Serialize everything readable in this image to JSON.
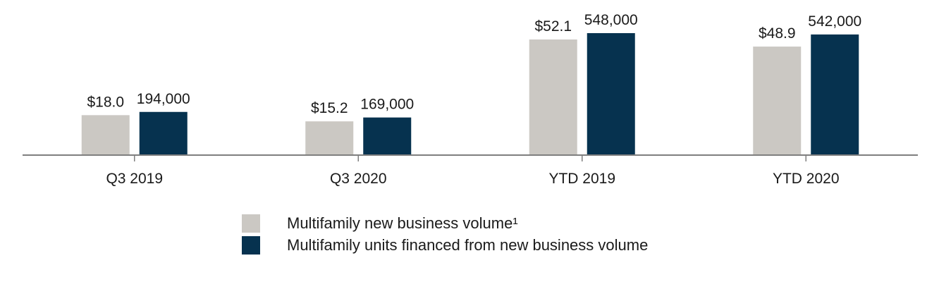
{
  "chart_data": {
    "type": "bar",
    "categories": [
      "Q3 2019",
      "Q3 2020",
      "YTD 2019",
      "YTD 2020"
    ],
    "series": [
      {
        "name": "Multifamily new business volume¹",
        "values": [
          18.0,
          15.2,
          52.1,
          48.9
        ],
        "labels": [
          "$18.0",
          "$15.2",
          "$52.1",
          "$48.9"
        ],
        "color": "#cbc8c3"
      },
      {
        "name": "Multifamily units financed from new business volume",
        "values": [
          194000,
          169000,
          548000,
          542000
        ],
        "labels": [
          "194,000",
          "169,000",
          "548,000",
          "542,000"
        ],
        "color": "#06324f"
      }
    ],
    "axis_color": "#7f7f7f",
    "grid": false,
    "legend_position": "bottom"
  }
}
